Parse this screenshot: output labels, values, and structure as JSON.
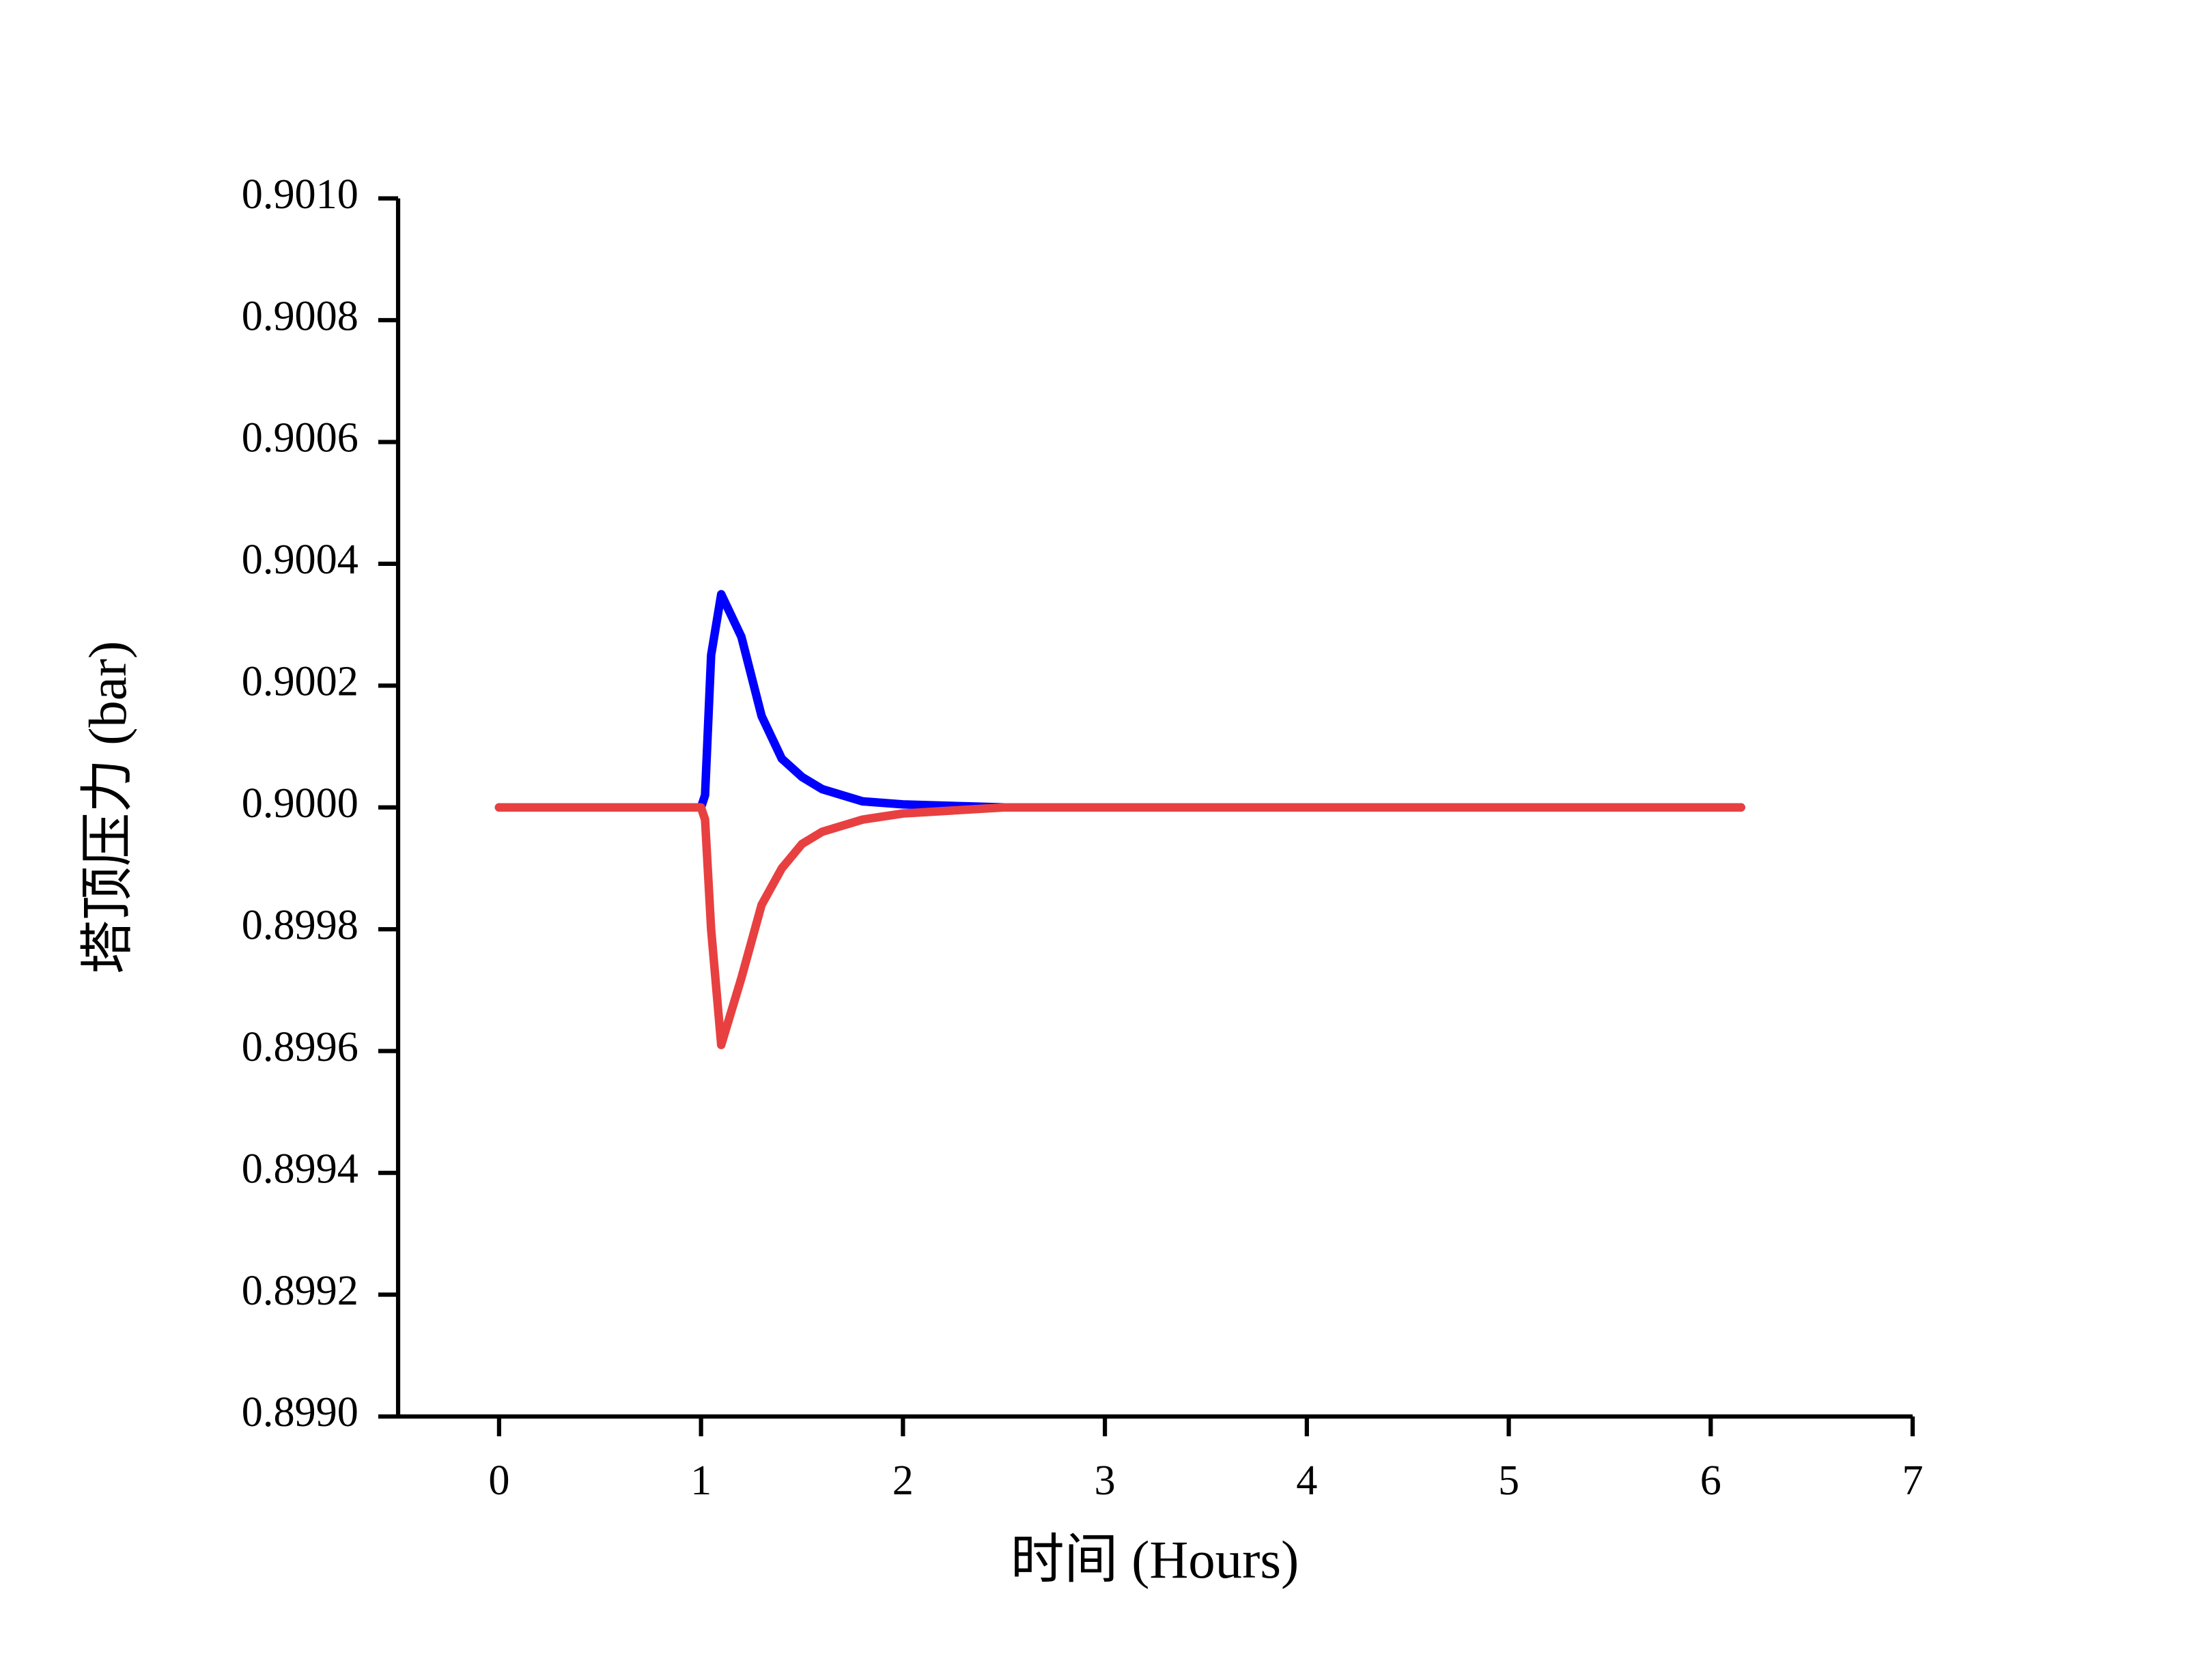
{
  "chart_data": {
    "type": "line",
    "x_label": "时间 (Hours)",
    "y_label": "塔顶压力 (bar)",
    "x": [
      0,
      1,
      1.02,
      1.05,
      1.1,
      1.2,
      1.3,
      1.4,
      1.5,
      1.6,
      1.8,
      2.0,
      2.5,
      3,
      6.15
    ],
    "series": [
      {
        "color": "#0000ff",
        "values": [
          0.9,
          0.9,
          0.90002,
          0.90025,
          0.90035,
          0.90028,
          0.90015,
          0.90008,
          0.90005,
          0.90003,
          0.90001,
          0.900005,
          0.9,
          0.9,
          0.9
        ]
      },
      {
        "color": "#e84040",
        "values": [
          0.9,
          0.9,
          0.89998,
          0.8998,
          0.89961,
          0.89972,
          0.89984,
          0.8999,
          0.89994,
          0.89996,
          0.89998,
          0.89999,
          0.9,
          0.9,
          0.9
        ]
      }
    ],
    "xlim": [
      -0.5,
      7
    ],
    "xticks": [
      0,
      1,
      2,
      3,
      4,
      5,
      6,
      7
    ],
    "ylim": [
      0.899,
      0.901
    ],
    "yticks": [
      {
        "value": 0.899,
        "label": "0.8990"
      },
      {
        "value": 0.8992,
        "label": "0.8992"
      },
      {
        "value": 0.8994,
        "label": "0.8994"
      },
      {
        "value": 0.8996,
        "label": "0.8996"
      },
      {
        "value": 0.8998,
        "label": "0.8998"
      },
      {
        "value": 0.9,
        "label": "0.9000"
      },
      {
        "value": 0.9002,
        "label": "0.9002"
      },
      {
        "value": 0.9004,
        "label": "0.9004"
      },
      {
        "value": 0.9006,
        "label": "0.9006"
      },
      {
        "value": 0.9008,
        "label": "0.9008"
      },
      {
        "value": 0.901,
        "label": "0.9010"
      }
    ],
    "grid": false
  }
}
